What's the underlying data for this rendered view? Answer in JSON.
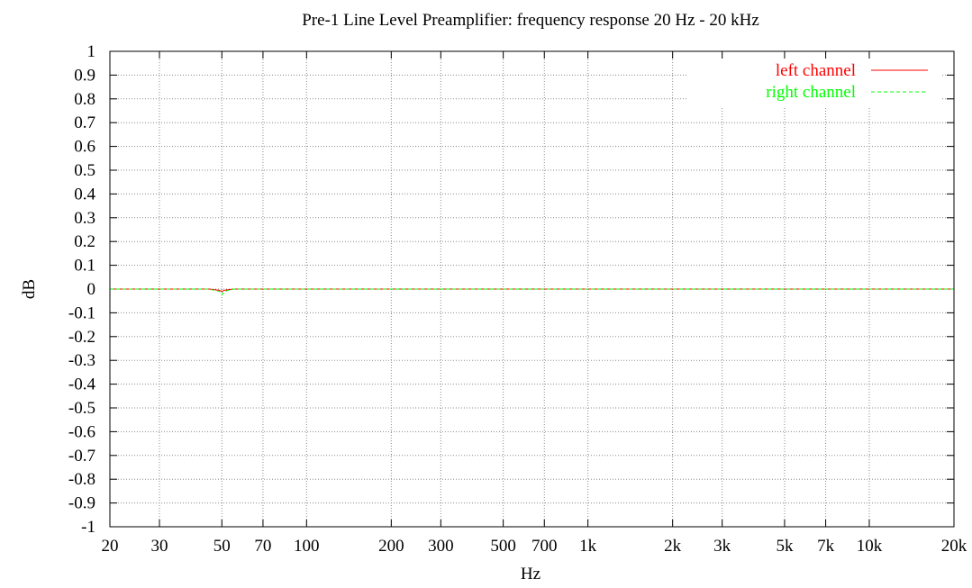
{
  "chart_data": {
    "type": "line",
    "title": "Pre-1 Line Level Preamplifier: frequency response 20 Hz - 20 kHz",
    "xlabel": "Hz",
    "ylabel": "dB",
    "xscale": "log",
    "xlim": [
      20,
      20000
    ],
    "ylim": [
      -1,
      1
    ],
    "grid": true,
    "legend_position": "top-right",
    "x_ticks": [
      {
        "value": 20,
        "label": "20"
      },
      {
        "value": 30,
        "label": "30"
      },
      {
        "value": 50,
        "label": "50"
      },
      {
        "value": 70,
        "label": "70"
      },
      {
        "value": 100,
        "label": "100"
      },
      {
        "value": 200,
        "label": "200"
      },
      {
        "value": 300,
        "label": "300"
      },
      {
        "value": 500,
        "label": "500"
      },
      {
        "value": 700,
        "label": "700"
      },
      {
        "value": 1000,
        "label": "1k"
      },
      {
        "value": 2000,
        "label": "2k"
      },
      {
        "value": 3000,
        "label": "3k"
      },
      {
        "value": 5000,
        "label": "5k"
      },
      {
        "value": 7000,
        "label": "7k"
      },
      {
        "value": 10000,
        "label": "10k"
      },
      {
        "value": 20000,
        "label": "20k"
      }
    ],
    "y_ticks": [
      {
        "value": 1,
        "label": "1"
      },
      {
        "value": 0.9,
        "label": "0.9"
      },
      {
        "value": 0.8,
        "label": "0.8"
      },
      {
        "value": 0.7,
        "label": "0.7"
      },
      {
        "value": 0.6,
        "label": "0.6"
      },
      {
        "value": 0.5,
        "label": "0.5"
      },
      {
        "value": 0.4,
        "label": "0.4"
      },
      {
        "value": 0.3,
        "label": "0.3"
      },
      {
        "value": 0.2,
        "label": "0.2"
      },
      {
        "value": 0.1,
        "label": "0.1"
      },
      {
        "value": 0,
        "label": "0"
      },
      {
        "value": -0.1,
        "label": "-0.1"
      },
      {
        "value": -0.2,
        "label": "-0.2"
      },
      {
        "value": -0.3,
        "label": "-0.3"
      },
      {
        "value": -0.4,
        "label": "-0.4"
      },
      {
        "value": -0.5,
        "label": "-0.5"
      },
      {
        "value": -0.6,
        "label": "-0.6"
      },
      {
        "value": -0.7,
        "label": "-0.7"
      },
      {
        "value": -0.8,
        "label": "-0.8"
      },
      {
        "value": -0.9,
        "label": "-0.9"
      },
      {
        "value": -1,
        "label": "-1"
      }
    ],
    "series": [
      {
        "name": "left channel",
        "color": "#ff0000",
        "dash": "solid",
        "points": [
          [
            20,
            0
          ],
          [
            30,
            0
          ],
          [
            45,
            0
          ],
          [
            49,
            -0.005
          ],
          [
            50,
            -0.01
          ],
          [
            51,
            -0.005
          ],
          [
            55,
            0
          ],
          [
            70,
            0
          ],
          [
            100,
            0
          ],
          [
            200,
            0
          ],
          [
            300,
            0
          ],
          [
            500,
            0
          ],
          [
            700,
            0
          ],
          [
            1000,
            0
          ],
          [
            2000,
            0
          ],
          [
            3000,
            0
          ],
          [
            5000,
            0
          ],
          [
            7000,
            0
          ],
          [
            10000,
            0
          ],
          [
            20000,
            0
          ]
        ]
      },
      {
        "name": "right channel",
        "color": "#00ff00",
        "dash": "dashed",
        "points": [
          [
            20,
            0
          ],
          [
            30,
            0
          ],
          [
            45,
            0
          ],
          [
            49,
            -0.01
          ],
          [
            50,
            -0.025
          ],
          [
            51,
            -0.01
          ],
          [
            55,
            0
          ],
          [
            70,
            0
          ],
          [
            100,
            0
          ],
          [
            200,
            0
          ],
          [
            300,
            0
          ],
          [
            500,
            0
          ],
          [
            700,
            0
          ],
          [
            1000,
            0
          ],
          [
            2000,
            0
          ],
          [
            3000,
            0
          ],
          [
            5000,
            0
          ],
          [
            7000,
            0
          ],
          [
            10000,
            0
          ],
          [
            20000,
            0
          ]
        ]
      }
    ]
  }
}
